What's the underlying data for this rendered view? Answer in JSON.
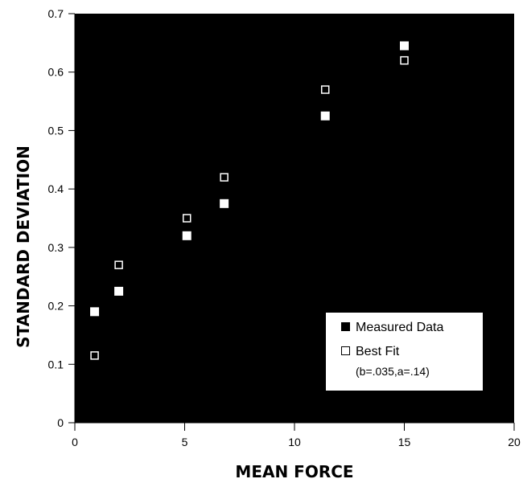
{
  "chart_data": {
    "type": "scatter",
    "title": "",
    "xlabel": "MEAN FORCE",
    "ylabel": "STANDARD DEVIATION",
    "xlim": [
      0,
      20
    ],
    "ylim": [
      0,
      0.7
    ],
    "xticks": [
      "0",
      "5",
      "10",
      "15",
      "20"
    ],
    "yticks": [
      "0",
      "0.1",
      "0.2",
      "0.3",
      "0.4",
      "0.5",
      "0.6",
      "0.7"
    ],
    "grid": false,
    "background_color": "#000000",
    "legend_position": "lower-right",
    "series": [
      {
        "name": "Measured Data",
        "marker": "filled-square",
        "points": [
          {
            "x": 0.9,
            "y": 0.19
          },
          {
            "x": 2.0,
            "y": 0.225
          },
          {
            "x": 5.1,
            "y": 0.32
          },
          {
            "x": 6.8,
            "y": 0.375
          },
          {
            "x": 11.4,
            "y": 0.525
          },
          {
            "x": 15.0,
            "y": 0.645
          }
        ]
      },
      {
        "name": "Best Fit",
        "marker": "open-square",
        "points": [
          {
            "x": 0.9,
            "y": 0.115
          },
          {
            "x": 2.0,
            "y": 0.27
          },
          {
            "x": 5.1,
            "y": 0.35
          },
          {
            "x": 6.8,
            "y": 0.42
          },
          {
            "x": 11.4,
            "y": 0.57
          },
          {
            "x": 15.0,
            "y": 0.62
          }
        ]
      }
    ],
    "legend": {
      "entries": [
        "Measured Data",
        "Best Fit"
      ],
      "note": "(b=.035,a=.14)"
    }
  }
}
